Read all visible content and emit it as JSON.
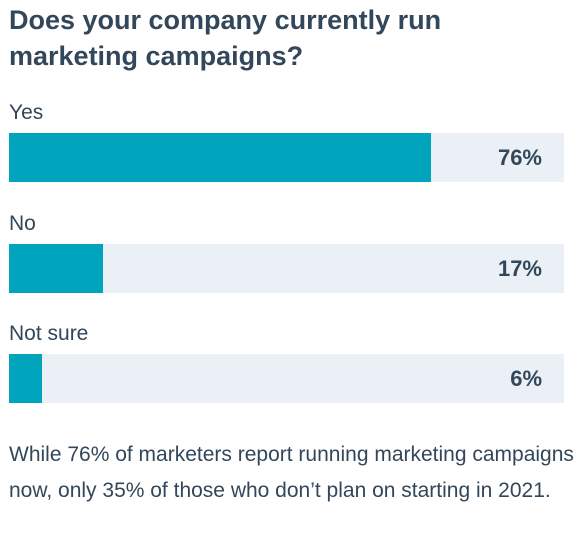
{
  "chart_data": {
    "type": "bar",
    "orientation": "horizontal",
    "title": "Does your company currently run marketing campaigns?",
    "categories": [
      "Yes",
      "No",
      "Not sure"
    ],
    "values": [
      76,
      17,
      6
    ],
    "value_labels": [
      "76%",
      "17%",
      "6%"
    ],
    "unit": "%",
    "xlim": [
      0,
      100
    ],
    "grid": false,
    "legend": "none"
  },
  "caption": "While 76% of marketers report running marketing campaigns now, only 35% of those who don’t plan on starting in 2021.",
  "colors": {
    "bar": "#00a4bd",
    "track": "#eaf0f6",
    "text": "#33475b"
  }
}
